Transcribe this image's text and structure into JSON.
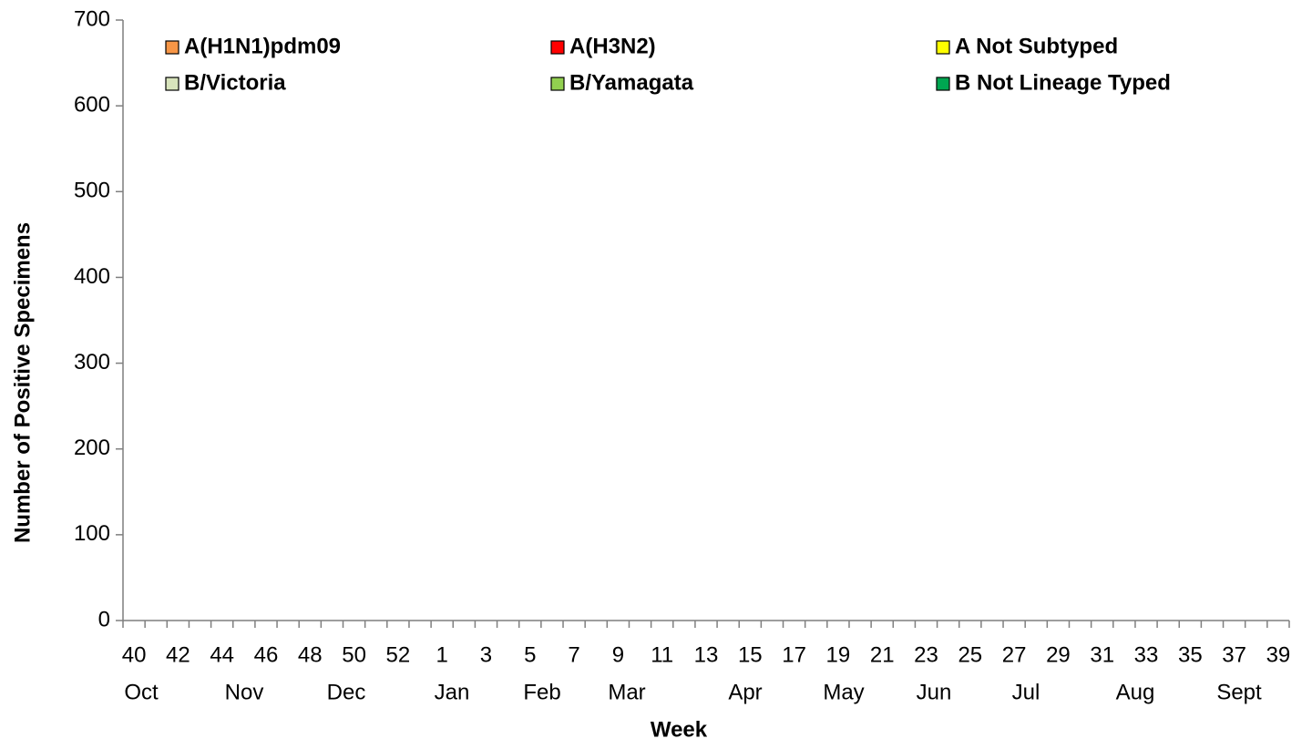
{
  "chart_data": {
    "type": "stacked_bar",
    "y_axis_label": "Number of Positive Specimens",
    "x_axis_label": "Week",
    "categories": [
      "40",
      null,
      "42",
      null,
      "44",
      null,
      "46",
      null,
      "48",
      null,
      "50",
      null,
      "52",
      null,
      "1",
      null,
      "3",
      null,
      "5",
      null,
      "7",
      null,
      "9",
      null,
      "11",
      null,
      "13",
      null,
      "15",
      null,
      "17",
      null,
      "19",
      null,
      "21",
      null,
      "23",
      null,
      "25",
      null,
      "27",
      null,
      "29",
      null,
      "31",
      null,
      "33",
      null,
      "35",
      null,
      "37",
      null,
      "39"
    ],
    "months": [
      "Oct",
      "Nov",
      "Dec",
      "Jan",
      "Feb",
      "Mar",
      "Apr",
      "May",
      "Jun",
      "Jul",
      "Aug",
      "Sept"
    ],
    "ylim": [
      0,
      700
    ],
    "yticks": [
      0,
      100,
      200,
      300,
      400,
      500,
      600,
      700
    ],
    "series": [
      {
        "name": "A(H1N1)pdm09",
        "color": "#f79646",
        "values": [
          0,
          0,
          0,
          0,
          0,
          0,
          0,
          0,
          0,
          0,
          0,
          0,
          0,
          0,
          0,
          0,
          0,
          0,
          0,
          0,
          0,
          0,
          0,
          0,
          0,
          0,
          0,
          0,
          0,
          0,
          0,
          0,
          0,
          0,
          0,
          0,
          0,
          0,
          0,
          0,
          0,
          0,
          0,
          0,
          0,
          0,
          0,
          0,
          0,
          0,
          0,
          0,
          0
        ]
      },
      {
        "name": "A(H3N2)",
        "color": "#ff0000",
        "values": [
          0,
          0,
          0,
          0,
          0,
          0,
          0,
          0,
          0,
          0,
          0,
          0,
          0,
          0,
          0,
          0,
          0,
          0,
          0,
          0,
          0,
          0,
          0,
          0,
          0,
          0,
          0,
          0,
          0,
          0,
          0,
          0,
          0,
          0,
          0,
          0,
          0,
          0,
          0,
          0,
          0,
          0,
          0,
          0,
          0,
          0,
          0,
          0,
          0,
          0,
          0,
          0,
          0
        ]
      },
      {
        "name": "A Not Subtyped",
        "color": "#ffff00",
        "values": [
          0,
          0,
          0,
          0,
          0,
          0,
          0,
          0,
          0,
          0,
          0,
          0,
          0,
          0,
          0,
          0,
          0,
          0,
          0,
          0,
          0,
          0,
          0,
          0,
          0,
          0,
          0,
          0,
          0,
          0,
          0,
          0,
          0,
          0,
          0,
          0,
          0,
          0,
          0,
          0,
          0,
          0,
          0,
          0,
          0,
          0,
          0,
          0,
          0,
          0,
          0,
          0,
          0
        ]
      },
      {
        "name": "B/Victoria",
        "color": "#d8e4bc",
        "values": [
          0,
          0,
          0,
          0,
          0,
          0,
          0,
          0,
          0,
          0,
          0,
          0,
          0,
          0,
          0,
          0,
          0,
          0,
          0,
          0,
          0,
          0,
          0,
          0,
          0,
          0,
          0,
          0,
          0,
          0,
          0,
          0,
          0,
          0,
          0,
          0,
          0,
          0,
          0,
          0,
          0,
          0,
          0,
          0,
          0,
          0,
          0,
          0,
          0,
          0,
          0,
          0,
          0
        ]
      },
      {
        "name": "B/Yamagata",
        "color": "#92d050",
        "values": [
          0,
          0,
          0,
          0,
          0,
          0,
          0,
          0,
          0,
          0,
          0,
          0,
          0,
          0,
          0,
          0,
          0,
          0,
          0,
          0,
          0,
          0,
          0,
          0,
          0,
          0,
          0,
          0,
          0,
          0,
          0,
          0,
          0,
          0,
          0,
          0,
          0,
          0,
          0,
          0,
          0,
          0,
          0,
          0,
          0,
          0,
          0,
          0,
          0,
          0,
          0,
          0,
          0
        ]
      },
      {
        "name": "B Not Lineage Typed",
        "color": "#00a651",
        "values": [
          0,
          0,
          0,
          0,
          0,
          0,
          0,
          0,
          0,
          0,
          0,
          0,
          0,
          0,
          0,
          0,
          0,
          0,
          0,
          0,
          0,
          0,
          0,
          0,
          0,
          0,
          0,
          0,
          0,
          0,
          0,
          0,
          0,
          0,
          0,
          0,
          0,
          0,
          0,
          0,
          0,
          0,
          0,
          0,
          0,
          0,
          0,
          0,
          0,
          0,
          0,
          0,
          0
        ]
      }
    ]
  }
}
